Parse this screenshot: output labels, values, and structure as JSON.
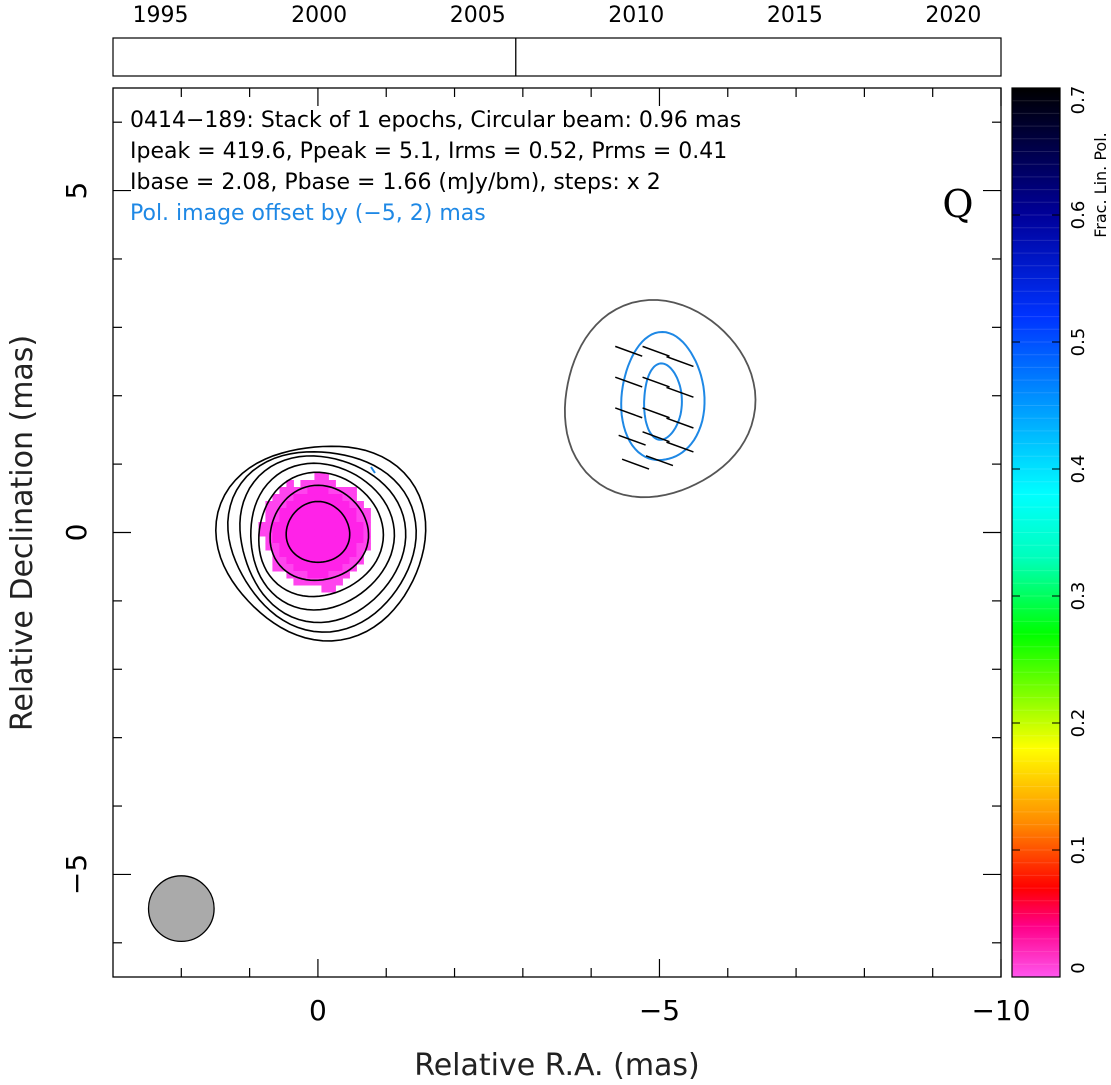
{
  "chart_data": {
    "type": "contour-map",
    "timeline": {
      "years": [
        "1995",
        "2000",
        "2005",
        "2010",
        "2015",
        "2020"
      ],
      "range": [
        1993.5,
        2021.5
      ],
      "epoch_marks": [
        2006.2
      ]
    },
    "annotation_lines": [
      "0414−189: Stack of 1 epochs, Circular beam: 0.96 mas",
      "Ipeak = 419.6, Ppeak = 5.1, Irms = 0.52, Prms = 0.41",
      "Ibase = 2.08, Pbase = 1.66 (mJy/bm), steps: x 2"
    ],
    "offset_note": "Pol. image offset by (−5, 2) mas",
    "band_label": "Q",
    "xlabel": "Relative R.A. (mas)",
    "ylabel": "Relative Declination (mas)",
    "xlim": [
      3,
      -10
    ],
    "ylim": [
      -6.5,
      6.5
    ],
    "xticks": [
      {
        "value": 0,
        "label": "0"
      },
      {
        "value": -5,
        "label": "−5"
      },
      {
        "value": -10,
        "label": "−10"
      }
    ],
    "yticks": [
      {
        "value": 5,
        "label": "5"
      },
      {
        "value": 0,
        "label": "0"
      },
      {
        "value": -5,
        "label": "−5"
      }
    ],
    "total_intensity_contours": {
      "center": [
        0,
        0
      ],
      "radii_mas": [
        0.45,
        0.7,
        0.9,
        1.05,
        1.2,
        1.33,
        1.46
      ],
      "color": "#000000"
    },
    "fractional_pol_pixels": {
      "center": [
        0,
        0
      ],
      "radius_mas": 0.8,
      "color": "#ff22e8"
    },
    "polarized_intensity_contour": {
      "center": [
        -5,
        2
      ],
      "radius_mas": 1.4,
      "color": "#555555"
    },
    "polarization_contours": {
      "center": [
        -5,
        2
      ],
      "radii": [
        [
          0.6,
          0.95
        ],
        [
          0.28,
          0.55
        ]
      ],
      "color": "#1e88e5"
    },
    "evpa_ticks": {
      "angle_deg": 160,
      "length_mas": 0.42,
      "points": [
        [
          -4.55,
          2.65
        ],
        [
          -4.95,
          2.65
        ],
        [
          -5.3,
          2.5
        ],
        [
          -4.55,
          2.2
        ],
        [
          -4.95,
          2.2
        ],
        [
          -5.3,
          2.05
        ],
        [
          -4.55,
          1.75
        ],
        [
          -4.95,
          1.75
        ],
        [
          -5.3,
          1.6
        ],
        [
          -4.6,
          1.35
        ],
        [
          -4.95,
          1.4
        ],
        [
          -5.3,
          1.25
        ],
        [
          -4.65,
          1.0
        ],
        [
          -5.0,
          1.05
        ]
      ],
      "color": "#000000"
    },
    "beam": {
      "center": [
        2,
        -5.5
      ],
      "diameter_mas": 0.96,
      "color": "#aaaaaa"
    },
    "colorbar": {
      "label": "Frac. Lin. Pol.",
      "range": [
        0,
        0.7
      ],
      "ticks": [
        {
          "value": 0,
          "label": "0"
        },
        {
          "value": 0.1,
          "label": "0.1"
        },
        {
          "value": 0.2,
          "label": "0.2"
        },
        {
          "value": 0.3,
          "label": "0.3"
        },
        {
          "value": 0.4,
          "label": "0.4"
        },
        {
          "value": 0.5,
          "label": "0.5"
        },
        {
          "value": 0.6,
          "label": "0.6"
        },
        {
          "value": 0.7,
          "label": "0.7"
        }
      ],
      "color_stops": [
        [
          "#ff55ee",
          0.0
        ],
        [
          "#ff0088",
          0.04
        ],
        [
          "#ff0000",
          0.07
        ],
        [
          "#ff8800",
          0.12
        ],
        [
          "#ffff00",
          0.18
        ],
        [
          "#88ff00",
          0.22
        ],
        [
          "#00ff00",
          0.27
        ],
        [
          "#00ffbb",
          0.33
        ],
        [
          "#00ffff",
          0.38
        ],
        [
          "#0099ff",
          0.45
        ],
        [
          "#0033ff",
          0.52
        ],
        [
          "#000099",
          0.6
        ],
        [
          "#000000",
          0.7
        ]
      ]
    }
  }
}
